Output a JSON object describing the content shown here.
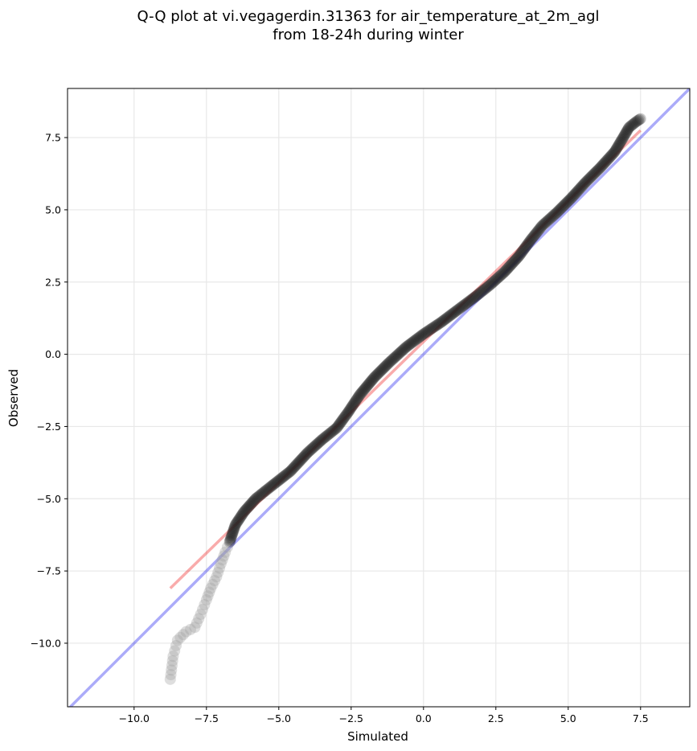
{
  "chart_data": {
    "type": "scatter",
    "title_line1": "Q-Q plot at vi.vegagerdin.31363 for air_temperature_at_2m_agl",
    "title_line2": "from 18-24h during winter",
    "xlabel": "Simulated",
    "ylabel": "Observed",
    "xlim": [
      -12.3,
      9.2
    ],
    "ylim": [
      -12.2,
      9.2
    ],
    "xticks": [
      -10.0,
      -7.5,
      -5.0,
      -2.5,
      0.0,
      2.5,
      5.0,
      7.5
    ],
    "xtick_labels": [
      "−10.0",
      "−7.5",
      "−5.0",
      "−2.5",
      "0.0",
      "2.5",
      "5.0",
      "7.5"
    ],
    "yticks": [
      -10.0,
      -7.5,
      -5.0,
      -2.5,
      0.0,
      2.5,
      5.0,
      7.5
    ],
    "ytick_labels": [
      "−10.0",
      "−7.5",
      "−5.0",
      "−2.5",
      "0.0",
      "2.5",
      "5.0",
      "7.5"
    ],
    "grid": true,
    "reference_line": {
      "description": "y = x",
      "color": "#0000ee"
    },
    "fit_line": {
      "x": [
        -8.75,
        7.5
      ],
      "y": [
        -8.1,
        7.75
      ],
      "color": "#ee0000"
    },
    "colors": {
      "points": "#1a1a1a",
      "points_tail": "#a0a0a0",
      "reference": "#0000ee",
      "fit": "#ee0000"
    },
    "quantile_curve": [
      {
        "x": -8.75,
        "y": -11.25
      },
      {
        "x": -8.65,
        "y": -10.45
      },
      {
        "x": -8.5,
        "y": -9.9
      },
      {
        "x": -8.2,
        "y": -9.6
      },
      {
        "x": -7.9,
        "y": -9.45
      },
      {
        "x": -7.7,
        "y": -9.0
      },
      {
        "x": -7.5,
        "y": -8.5
      },
      {
        "x": -7.35,
        "y": -8.1
      },
      {
        "x": -7.15,
        "y": -7.7
      },
      {
        "x": -7.0,
        "y": -7.25
      },
      {
        "x": -6.85,
        "y": -6.85
      },
      {
        "x": -6.7,
        "y": -6.5
      },
      {
        "x": -6.5,
        "y": -5.9
      },
      {
        "x": -6.2,
        "y": -5.45
      },
      {
        "x": -5.8,
        "y": -5.0
      },
      {
        "x": -5.3,
        "y": -4.6
      },
      {
        "x": -4.6,
        "y": -4.05
      },
      {
        "x": -4.0,
        "y": -3.4
      },
      {
        "x": -3.5,
        "y": -2.95
      },
      {
        "x": -3.0,
        "y": -2.55
      },
      {
        "x": -2.6,
        "y": -2.0
      },
      {
        "x": -2.2,
        "y": -1.4
      },
      {
        "x": -1.7,
        "y": -0.8
      },
      {
        "x": -1.2,
        "y": -0.3
      },
      {
        "x": -0.6,
        "y": 0.25
      },
      {
        "x": 0.0,
        "y": 0.7
      },
      {
        "x": 0.6,
        "y": 1.1
      },
      {
        "x": 1.2,
        "y": 1.55
      },
      {
        "x": 1.8,
        "y": 2.0
      },
      {
        "x": 2.3,
        "y": 2.4
      },
      {
        "x": 2.8,
        "y": 2.85
      },
      {
        "x": 3.3,
        "y": 3.4
      },
      {
        "x": 3.7,
        "y": 3.95
      },
      {
        "x": 4.1,
        "y": 4.45
      },
      {
        "x": 4.6,
        "y": 4.9
      },
      {
        "x": 5.1,
        "y": 5.4
      },
      {
        "x": 5.6,
        "y": 5.95
      },
      {
        "x": 6.1,
        "y": 6.45
      },
      {
        "x": 6.6,
        "y": 7.0
      },
      {
        "x": 6.9,
        "y": 7.5
      },
      {
        "x": 7.1,
        "y": 7.85
      },
      {
        "x": 7.35,
        "y": 8.05
      },
      {
        "x": 7.5,
        "y": 8.15
      }
    ]
  }
}
